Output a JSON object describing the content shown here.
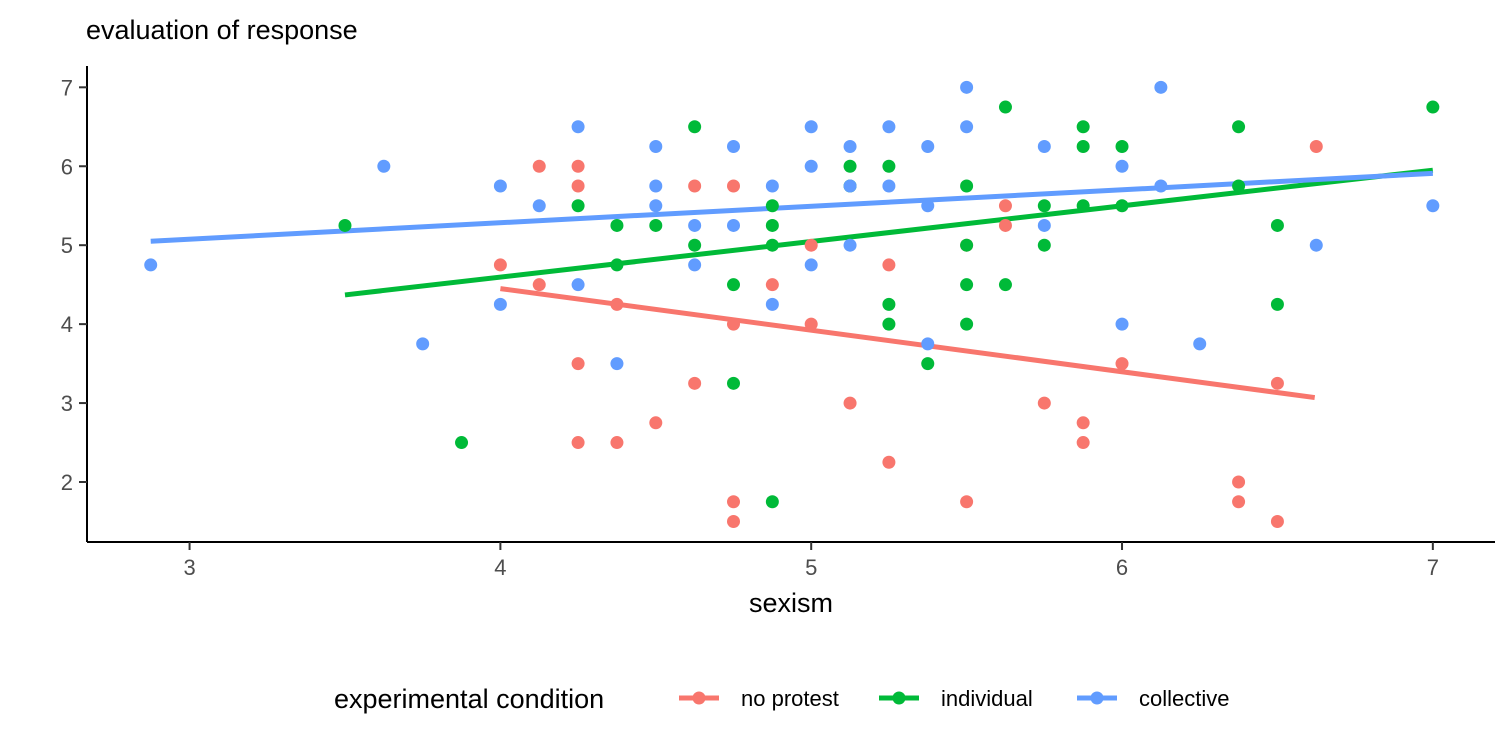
{
  "chart_data": {
    "type": "scatter",
    "title": "",
    "ylabel": "evaluation of response",
    "xlabel": "sexism",
    "xlim": [
      2.67,
      7.2
    ],
    "ylim": [
      1.24,
      7.27
    ],
    "x_ticks": [
      "3",
      "4",
      "5",
      "6",
      "7"
    ],
    "y_ticks": [
      "2",
      "3",
      "4",
      "5",
      "6",
      "7"
    ],
    "grid": false,
    "legend": {
      "title": "experimental condition",
      "position": "bottom"
    },
    "series": [
      {
        "name": "no protest",
        "color": "#F8766D",
        "fit": {
          "x": [
            4.0,
            6.62
          ],
          "y": [
            4.45,
            3.07
          ]
        },
        "points": [
          [
            4.0,
            4.75
          ],
          [
            4.125,
            6.0
          ],
          [
            4.125,
            4.5
          ],
          [
            4.25,
            6.0
          ],
          [
            4.25,
            5.75
          ],
          [
            4.25,
            3.5
          ],
          [
            4.25,
            2.5
          ],
          [
            4.375,
            4.25
          ],
          [
            4.375,
            2.5
          ],
          [
            4.5,
            2.75
          ],
          [
            4.625,
            5.75
          ],
          [
            4.625,
            3.25
          ],
          [
            4.75,
            5.75
          ],
          [
            4.75,
            4.0
          ],
          [
            4.75,
            1.75
          ],
          [
            4.75,
            1.5
          ],
          [
            4.875,
            4.5
          ],
          [
            5.0,
            5.0
          ],
          [
            5.0,
            4.0
          ],
          [
            5.125,
            3.0
          ],
          [
            5.25,
            4.75
          ],
          [
            5.25,
            2.25
          ],
          [
            5.5,
            5.0
          ],
          [
            5.5,
            1.75
          ],
          [
            5.625,
            5.5
          ],
          [
            5.625,
            5.25
          ],
          [
            5.75,
            3.0
          ],
          [
            5.875,
            2.75
          ],
          [
            5.875,
            2.5
          ],
          [
            6.0,
            3.5
          ],
          [
            6.375,
            2.0
          ],
          [
            6.375,
            1.75
          ],
          [
            6.5,
            3.25
          ],
          [
            6.5,
            1.5
          ],
          [
            6.625,
            6.25
          ]
        ]
      },
      {
        "name": "individual",
        "color": "#00BA38",
        "fit": {
          "x": [
            3.5,
            7.0
          ],
          "y": [
            4.37,
            5.95
          ]
        },
        "points": [
          [
            3.5,
            5.25
          ],
          [
            3.875,
            2.5
          ],
          [
            4.25,
            5.5
          ],
          [
            4.375,
            5.25
          ],
          [
            4.375,
            4.75
          ],
          [
            4.5,
            5.25
          ],
          [
            4.625,
            6.5
          ],
          [
            4.625,
            5.0
          ],
          [
            4.75,
            4.5
          ],
          [
            4.75,
            3.25
          ],
          [
            4.875,
            5.5
          ],
          [
            4.875,
            5.25
          ],
          [
            4.875,
            5.0
          ],
          [
            4.875,
            1.75
          ],
          [
            5.125,
            6.0
          ],
          [
            5.125,
            5.75
          ],
          [
            5.25,
            6.0
          ],
          [
            5.25,
            4.25
          ],
          [
            5.25,
            4.0
          ],
          [
            5.375,
            3.5
          ],
          [
            5.5,
            5.75
          ],
          [
            5.5,
            5.0
          ],
          [
            5.5,
            4.5
          ],
          [
            5.5,
            4.0
          ],
          [
            5.625,
            6.75
          ],
          [
            5.625,
            4.5
          ],
          [
            5.75,
            5.5
          ],
          [
            5.75,
            5.0
          ],
          [
            5.875,
            6.5
          ],
          [
            5.875,
            6.25
          ],
          [
            5.875,
            5.5
          ],
          [
            6.0,
            6.25
          ],
          [
            6.0,
            5.5
          ],
          [
            6.375,
            6.5
          ],
          [
            6.375,
            5.75
          ],
          [
            6.5,
            5.25
          ],
          [
            6.5,
            4.25
          ],
          [
            7.0,
            6.75
          ]
        ]
      },
      {
        "name": "collective",
        "color": "#619CFF",
        "fit": {
          "x": [
            2.875,
            7.0
          ],
          "y": [
            5.05,
            5.91
          ]
        },
        "points": [
          [
            2.875,
            4.75
          ],
          [
            3.625,
            6.0
          ],
          [
            3.75,
            3.75
          ],
          [
            4.0,
            5.75
          ],
          [
            4.0,
            4.25
          ],
          [
            4.125,
            5.5
          ],
          [
            4.25,
            6.5
          ],
          [
            4.25,
            4.5
          ],
          [
            4.375,
            3.5
          ],
          [
            4.5,
            6.25
          ],
          [
            4.5,
            5.75
          ],
          [
            4.5,
            5.5
          ],
          [
            4.625,
            5.25
          ],
          [
            4.625,
            4.75
          ],
          [
            4.75,
            6.25
          ],
          [
            4.75,
            5.25
          ],
          [
            4.875,
            5.75
          ],
          [
            4.875,
            4.25
          ],
          [
            5.0,
            6.5
          ],
          [
            5.0,
            6.0
          ],
          [
            5.0,
            4.75
          ],
          [
            5.125,
            6.25
          ],
          [
            5.125,
            5.75
          ],
          [
            5.125,
            5.0
          ],
          [
            5.25,
            6.5
          ],
          [
            5.25,
            5.75
          ],
          [
            5.375,
            6.25
          ],
          [
            5.375,
            5.5
          ],
          [
            5.375,
            3.75
          ],
          [
            5.5,
            7.0
          ],
          [
            5.5,
            6.5
          ],
          [
            5.75,
            6.25
          ],
          [
            5.75,
            5.25
          ],
          [
            6.0,
            6.0
          ],
          [
            6.0,
            4.0
          ],
          [
            6.125,
            7.0
          ],
          [
            6.125,
            5.75
          ],
          [
            6.25,
            3.75
          ],
          [
            6.625,
            5.0
          ],
          [
            7.0,
            5.5
          ]
        ]
      }
    ]
  }
}
